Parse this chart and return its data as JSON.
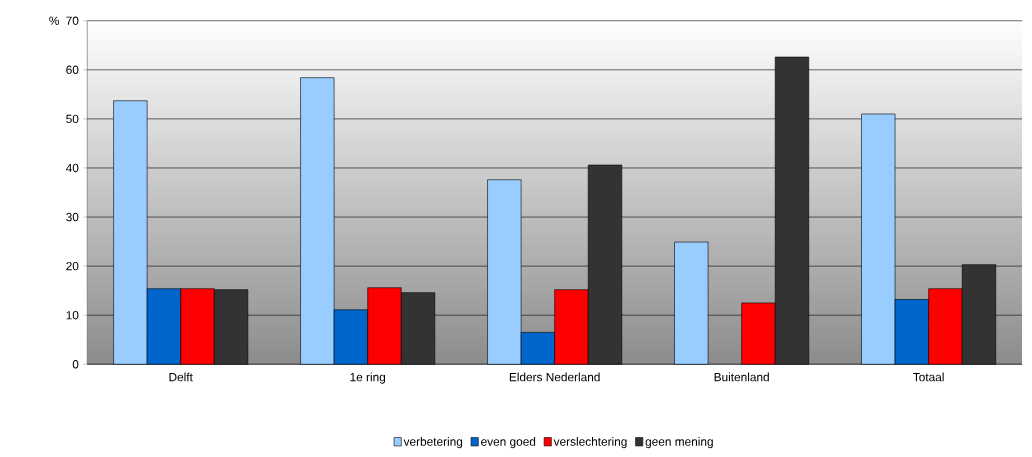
{
  "chart_data": {
    "type": "bar",
    "ylabel": "%",
    "categories": [
      "Delft",
      "1e ring",
      "Elders Nederland",
      "Buitenland",
      "Totaal"
    ],
    "series": [
      {
        "name": "verbetering",
        "color": "#99ccff",
        "values": [
          53.7,
          58.4,
          37.6,
          24.9,
          51.0
        ]
      },
      {
        "name": "even goed",
        "color": "#0066cc",
        "values": [
          15.4,
          11.1,
          6.5,
          null,
          13.2
        ]
      },
      {
        "name": "verslechtering",
        "color": "#ff0000",
        "values": [
          15.4,
          15.6,
          15.2,
          12.5,
          15.4
        ]
      },
      {
        "name": "geen mening",
        "color": "#333333",
        "values": [
          15.2,
          14.6,
          40.6,
          62.6,
          20.3
        ]
      }
    ],
    "ylim": [
      0,
      70
    ],
    "yticks": [
      0,
      10,
      20,
      30,
      40,
      50,
      60,
      70
    ],
    "grid": "y",
    "legend": "bottom"
  }
}
